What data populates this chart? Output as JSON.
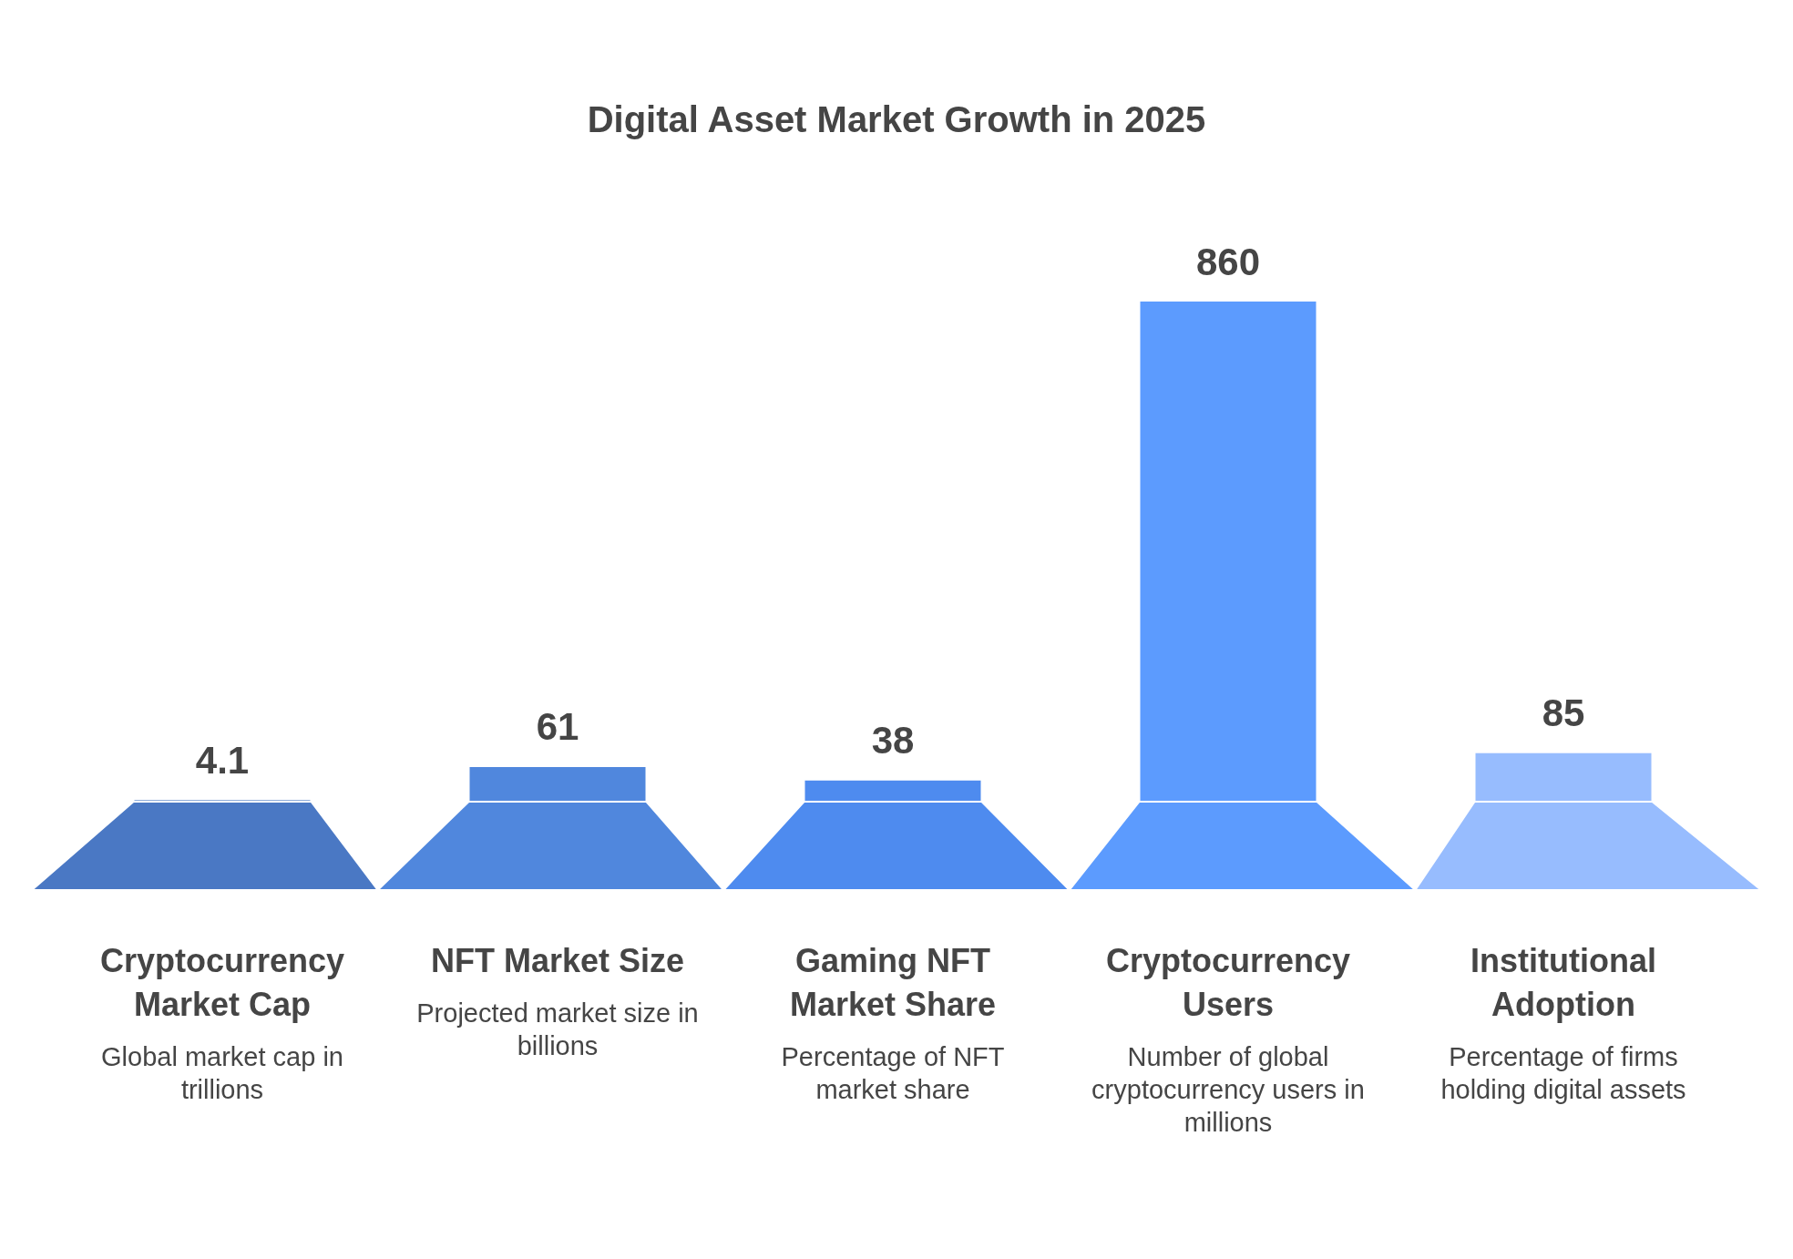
{
  "chart_data": {
    "type": "bar",
    "title": "Digital Asset Market Growth in 2025",
    "categories": [
      "Cryptocurrency Market Cap",
      "NFT Market Size",
      "Gaming NFT Market Share",
      "Cryptocurrency Users",
      "Institutional Adoption"
    ],
    "values": [
      4.1,
      61,
      38,
      860,
      85
    ],
    "colors": [
      "#4a78c4",
      "#5087dd",
      "#4e8bef",
      "#5c9bfe",
      "#97bcfe"
    ],
    "data_labels": true,
    "annotations": [
      "Global market cap in trillions",
      "Projected market size in billions",
      "Percentage of NFT market share",
      "Number of global cryptocurrency users in millions",
      "Percentage of firms holding digital assets"
    ]
  }
}
